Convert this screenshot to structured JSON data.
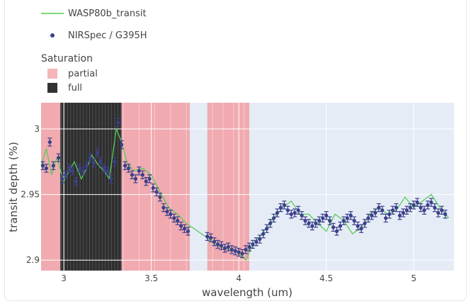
{
  "legend": {
    "items": [
      {
        "label": "WASP80b_transit",
        "color": "#55cc55",
        "symbol": "line"
      },
      {
        "label": "NIRSpec / G395H",
        "color": "#3c3f8a",
        "symbol": "dot"
      }
    ],
    "group_title": "Saturation",
    "group_items": [
      {
        "label": "partial",
        "color": "#f4b6b8"
      },
      {
        "label": "full",
        "color": "#333333"
      }
    ]
  },
  "chart_data": {
    "type": "scatter",
    "xlabel": "wavelength (um)",
    "ylabel": "transit depth (%)",
    "xlim": [
      2.87,
      5.23
    ],
    "ylim": [
      2.892,
      3.02
    ],
    "xticks": [
      3,
      3.5,
      4,
      4.5,
      5
    ],
    "xtick_labels": [
      "3",
      "3.5",
      "4",
      "4.5",
      "5"
    ],
    "yticks": [
      2.9,
      2.95,
      3
    ],
    "ytick_labels": [
      "2.9",
      "2.95",
      "3"
    ],
    "grid": true,
    "legend_position": "top-left",
    "saturation": {
      "partial": [
        [
          2.87,
          3.72
        ],
        [
          3.82,
          4.06
        ]
      ],
      "full": [
        [
          2.98,
          3.33
        ]
      ]
    },
    "series": [
      {
        "name": "WASP80b_transit",
        "kind": "line",
        "color": "#55cc55",
        "x": [
          2.87,
          2.9,
          2.93,
          2.96,
          3.0,
          3.03,
          3.06,
          3.1,
          3.13,
          3.16,
          3.2,
          3.23,
          3.26,
          3.3,
          3.33,
          3.36,
          3.4,
          3.45,
          3.5,
          3.55,
          3.6,
          3.65,
          3.7,
          3.82,
          3.86,
          3.9,
          3.95,
          4.0,
          4.04,
          4.08,
          4.12,
          4.16,
          4.2,
          4.25,
          4.3,
          4.35,
          4.4,
          4.45,
          4.5,
          4.55,
          4.6,
          4.65,
          4.7,
          4.75,
          4.8,
          4.85,
          4.9,
          4.95,
          5.0,
          5.05,
          5.1,
          5.15,
          5.2
        ],
        "y": [
          2.972,
          2.985,
          2.965,
          2.978,
          2.96,
          2.968,
          2.975,
          2.962,
          2.97,
          2.98,
          2.972,
          2.968,
          2.962,
          3.0,
          2.99,
          2.975,
          2.968,
          2.97,
          2.965,
          2.952,
          2.94,
          2.935,
          2.928,
          2.917,
          2.912,
          2.91,
          2.908,
          2.905,
          2.9,
          2.912,
          2.918,
          2.925,
          2.932,
          2.94,
          2.945,
          2.935,
          2.935,
          2.928,
          2.922,
          2.935,
          2.93,
          2.92,
          2.925,
          2.935,
          2.94,
          2.935,
          2.938,
          2.948,
          2.94,
          2.945,
          2.95,
          2.94,
          2.932
        ]
      },
      {
        "name": "NIRSpec / G395H",
        "kind": "markers",
        "color": "#3c3f8a",
        "x": [
          2.88,
          2.9,
          2.92,
          2.94,
          2.97,
          2.99,
          3.01,
          3.03,
          3.05,
          3.07,
          3.09,
          3.11,
          3.13,
          3.15,
          3.17,
          3.19,
          3.21,
          3.23,
          3.25,
          3.27,
          3.29,
          3.31,
          3.33,
          3.35,
          3.37,
          3.39,
          3.41,
          3.43,
          3.45,
          3.47,
          3.49,
          3.51,
          3.53,
          3.55,
          3.57,
          3.59,
          3.61,
          3.63,
          3.65,
          3.67,
          3.69,
          3.71,
          3.82,
          3.84,
          3.86,
          3.88,
          3.9,
          3.92,
          3.94,
          3.96,
          3.98,
          4.0,
          4.02,
          4.04,
          4.06,
          4.08,
          4.1,
          4.12,
          4.14,
          4.16,
          4.18,
          4.2,
          4.22,
          4.24,
          4.26,
          4.28,
          4.3,
          4.32,
          4.34,
          4.36,
          4.38,
          4.4,
          4.42,
          4.44,
          4.46,
          4.48,
          4.5,
          4.52,
          4.54,
          4.56,
          4.58,
          4.6,
          4.62,
          4.64,
          4.66,
          4.68,
          4.7,
          4.72,
          4.74,
          4.76,
          4.78,
          4.8,
          4.82,
          4.84,
          4.86,
          4.88,
          4.9,
          4.92,
          4.94,
          4.96,
          4.98,
          5.0,
          5.02,
          5.04,
          5.06,
          5.08,
          5.1,
          5.12,
          5.14,
          5.16,
          5.18
        ],
        "y": [
          2.972,
          2.97,
          2.99,
          2.972,
          2.978,
          2.962,
          2.965,
          2.97,
          2.968,
          2.96,
          2.97,
          2.968,
          2.972,
          2.978,
          2.974,
          2.982,
          2.975,
          2.97,
          2.968,
          2.962,
          2.975,
          3.005,
          2.988,
          2.972,
          2.97,
          2.965,
          2.962,
          2.968,
          2.965,
          2.96,
          2.962,
          2.955,
          2.952,
          2.948,
          2.94,
          2.937,
          2.935,
          2.932,
          2.93,
          2.926,
          2.924,
          2.922,
          2.918,
          2.917,
          2.914,
          2.912,
          2.911,
          2.909,
          2.91,
          2.908,
          2.907,
          2.906,
          2.905,
          2.908,
          2.91,
          2.912,
          2.914,
          2.916,
          2.92,
          2.924,
          2.928,
          2.932,
          2.936,
          2.94,
          2.942,
          2.938,
          2.935,
          2.936,
          2.938,
          2.934,
          2.93,
          2.928,
          2.926,
          2.928,
          2.93,
          2.932,
          2.934,
          2.93,
          2.925,
          2.922,
          2.926,
          2.93,
          2.932,
          2.934,
          2.93,
          2.926,
          2.924,
          2.928,
          2.932,
          2.934,
          2.936,
          2.94,
          2.938,
          2.932,
          2.935,
          2.938,
          2.94,
          2.934,
          2.936,
          2.938,
          2.94,
          2.942,
          2.944,
          2.94,
          2.938,
          2.942,
          2.944,
          2.94,
          2.936,
          2.938,
          2.935
        ],
        "yerr": 0.003
      }
    ]
  }
}
